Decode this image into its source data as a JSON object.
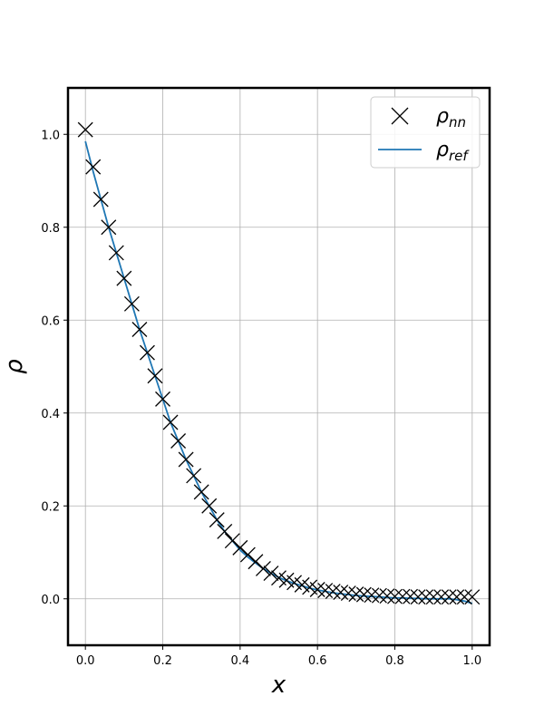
{
  "chart_data": {
    "type": "line",
    "xlabel": "x",
    "ylabel": "ρ",
    "xlim": [
      -0.045,
      1.045
    ],
    "ylim": [
      -0.1,
      1.1
    ],
    "grid": true,
    "legend_position": "top-right",
    "x_ticks": [
      0.0,
      0.2,
      0.4,
      0.6,
      0.8,
      1.0
    ],
    "x_tick_labels": [
      "0.0",
      "0.2",
      "0.4",
      "0.6",
      "0.8",
      "1.0"
    ],
    "y_ticks": [
      0.0,
      0.2,
      0.4,
      0.6,
      0.8,
      1.0
    ],
    "y_tick_labels": [
      "0.0",
      "0.2",
      "0.4",
      "0.6",
      "0.8",
      "1.0"
    ],
    "series": [
      {
        "name": "ρ_nn",
        "legend_base": "ρ",
        "legend_sub": "nn",
        "style": "markers",
        "marker": "x",
        "color": "#000000",
        "x": [
          0.0,
          0.02,
          0.04,
          0.06,
          0.08,
          0.1,
          0.12,
          0.14,
          0.16,
          0.18,
          0.2,
          0.22,
          0.24,
          0.26,
          0.28,
          0.3,
          0.32,
          0.34,
          0.36,
          0.38,
          0.4,
          0.42,
          0.44,
          0.46,
          0.48,
          0.5,
          0.52,
          0.54,
          0.56,
          0.58,
          0.6,
          0.62,
          0.64,
          0.66,
          0.68,
          0.7,
          0.72,
          0.74,
          0.76,
          0.78,
          0.8,
          0.82,
          0.84,
          0.86,
          0.88,
          0.9,
          0.92,
          0.94,
          0.96,
          0.98,
          1.0
        ],
        "y": [
          1.01,
          0.93,
          0.86,
          0.8,
          0.745,
          0.69,
          0.635,
          0.58,
          0.53,
          0.48,
          0.43,
          0.38,
          0.34,
          0.3,
          0.265,
          0.23,
          0.2,
          0.17,
          0.145,
          0.125,
          0.11,
          0.095,
          0.08,
          0.065,
          0.055,
          0.045,
          0.04,
          0.035,
          0.03,
          0.025,
          0.02,
          0.018,
          0.016,
          0.014,
          0.012,
          0.01,
          0.009,
          0.008,
          0.007,
          0.006,
          0.005,
          0.005,
          0.005,
          0.004,
          0.004,
          0.004,
          0.004,
          0.004,
          0.004,
          0.004,
          0.004
        ]
      },
      {
        "name": "ρ_ref",
        "legend_base": "ρ",
        "legend_sub": "ref",
        "style": "line",
        "color": "#1f77b4",
        "x": [
          0.0,
          0.02,
          0.04,
          0.06,
          0.08,
          0.1,
          0.12,
          0.14,
          0.16,
          0.18,
          0.2,
          0.22,
          0.24,
          0.26,
          0.28,
          0.3,
          0.32,
          0.34,
          0.36,
          0.38,
          0.4,
          0.42,
          0.44,
          0.46,
          0.48,
          0.5,
          0.52,
          0.54,
          0.56,
          0.58,
          0.6,
          0.62,
          0.64,
          0.66,
          0.68,
          0.7,
          0.72,
          0.74,
          0.76,
          0.78,
          0.8,
          0.82,
          0.84,
          0.86,
          0.88,
          0.9,
          0.92,
          0.94,
          0.96,
          0.98,
          1.0
        ],
        "y": [
          0.985,
          0.92,
          0.86,
          0.8,
          0.745,
          0.69,
          0.635,
          0.58,
          0.53,
          0.48,
          0.43,
          0.38,
          0.34,
          0.3,
          0.265,
          0.23,
          0.2,
          0.17,
          0.145,
          0.125,
          0.105,
          0.09,
          0.077,
          0.065,
          0.055,
          0.046,
          0.039,
          0.033,
          0.028,
          0.023,
          0.019,
          0.016,
          0.013,
          0.011,
          0.009,
          0.007,
          0.006,
          0.005,
          0.004,
          0.003,
          0.002,
          0.002,
          0.001,
          0.001,
          0.0,
          0.0,
          0.0,
          0.0,
          -0.002,
          -0.005,
          -0.01
        ]
      }
    ]
  }
}
